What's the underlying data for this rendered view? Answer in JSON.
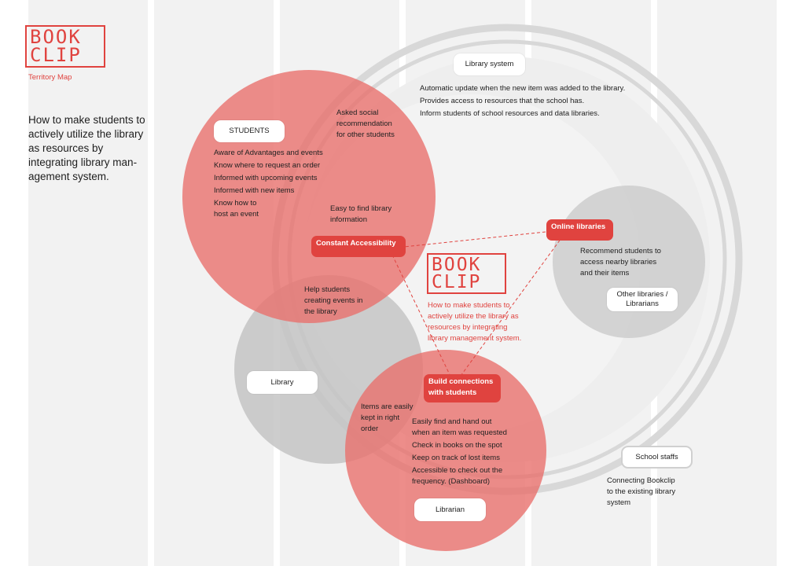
{
  "brand": {
    "logo_line1": "BOOK",
    "logo_line2": "CLIP",
    "subtitle": "Territory Map",
    "description": "How to make students to actively utilize the library as resources by integrating library man-agement system."
  },
  "colors": {
    "accent": "#e0433f",
    "red_circle": "#e8716d",
    "gray_circle": "#cbcbcb",
    "ring": "#d8d8d8",
    "column_bg": "#f2f2f2"
  },
  "diagram": {
    "library_system": {
      "label": "Library system",
      "items": [
        "Automatic update when the new item was added to the library.",
        "Provides access to resources that the school has.",
        "Inform students of school resources and data libraries."
      ]
    },
    "students": {
      "label": "STUDENTS",
      "items": [
        "Aware of Advantages and events",
        "Know where to request an order",
        "Informed with upcoming events",
        "Informed with new items",
        "Know how to",
        "host an event"
      ],
      "asked_social": [
        "Asked social",
        "recommendation",
        "for other students"
      ],
      "easy_find": [
        "Easy to find library",
        "information"
      ]
    },
    "constant_accessibility": "Constant Accessibility",
    "online_libraries": {
      "label": "Online libraries",
      "items": [
        "Recommend students to",
        "access nearby libraries",
        "and their items"
      ]
    },
    "other_libraries": [
      "Other libraries /",
      "Librarians"
    ],
    "center": {
      "logo_line1": "BOOK",
      "logo_line2": "CLIP",
      "text": [
        "How to make students to",
        "actively utilize the library as",
        "resources by integrating",
        "library management system."
      ]
    },
    "help_students": [
      "Help students",
      "creating events in",
      "the library"
    ],
    "library": "Library",
    "build_connections": [
      "Build connections",
      "with students"
    ],
    "items_kept": [
      "Items are easily",
      "kept in right",
      "order"
    ],
    "librarian": {
      "label": "Librarian",
      "items": [
        "Easily find and hand out",
        "when an item was requested",
        "Check in books on the spot",
        "Keep on track of lost items",
        "Accessible to check out the",
        "frequency. (Dashboard)"
      ]
    },
    "school_staffs": {
      "label": "School staffs",
      "items": [
        "Connecting Bookclip",
        "to the existing library",
        "system"
      ]
    }
  }
}
